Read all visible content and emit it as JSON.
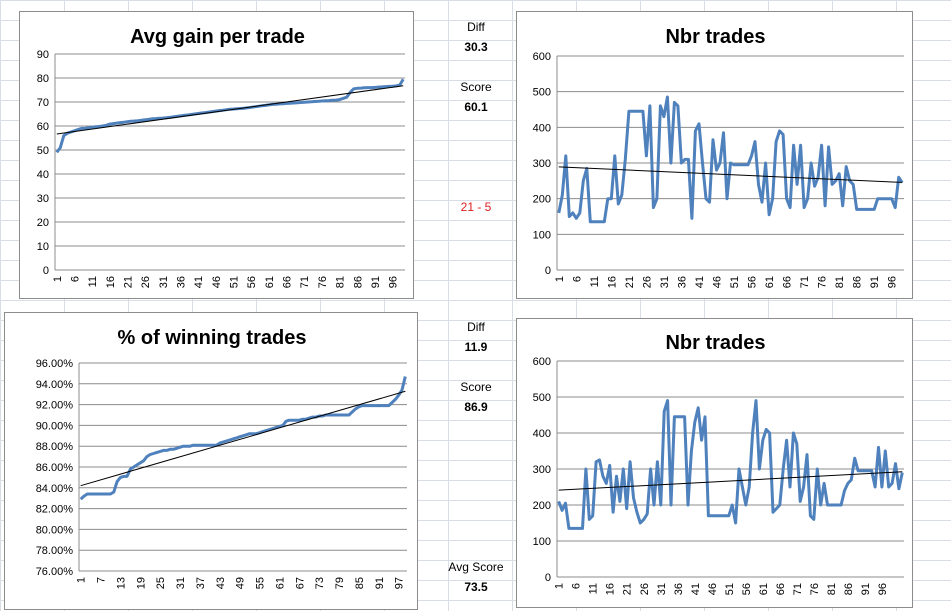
{
  "cells": {
    "diff1_label": "Diff",
    "diff1_value": "30.3",
    "score1_label": "Score",
    "score1_value": "60.1",
    "wl": "21 - 5",
    "diff2_label": "Diff",
    "diff2_value": "11.9",
    "score2_label": "Score",
    "score2_value": "86.9",
    "avg_label": "Avg Score",
    "avg_value": "73.5"
  },
  "colors": {
    "series": "#4f81bd",
    "trend": "#000000",
    "grid": "#8c8c8c"
  },
  "chart_data": [
    {
      "id": "c1",
      "type": "line",
      "title": "Avg gain per trade",
      "ylim": [
        0,
        90
      ],
      "yticks": [
        0,
        10,
        20,
        30,
        40,
        50,
        60,
        70,
        80,
        90
      ],
      "ytick_format": "int",
      "xtick_labels": [
        "1",
        "6",
        "11",
        "16",
        "21",
        "26",
        "31",
        "36",
        "41",
        "46",
        "51",
        "56",
        "61",
        "66",
        "71",
        "76",
        "81",
        "86",
        "91",
        "96"
      ],
      "trendline": true,
      "values": [
        49,
        51,
        56,
        57,
        57.5,
        58,
        58.5,
        59,
        59,
        59.3,
        59.5,
        59.7,
        59.8,
        60,
        60.3,
        60.8,
        61,
        61.2,
        61.4,
        61.6,
        61.8,
        62,
        62.1,
        62.2,
        62.4,
        62.6,
        62.8,
        63,
        63.1,
        63.2,
        63.3,
        63.4,
        63.6,
        63.8,
        64,
        64.2,
        64.4,
        64.6,
        64.8,
        65,
        65.2,
        65.4,
        65.6,
        65.8,
        66,
        66.2,
        66.4,
        66.6,
        66.8,
        67,
        67.1,
        67.2,
        67.3,
        67.4,
        67.6,
        67.8,
        68,
        68.2,
        68.4,
        68.6,
        68.8,
        69,
        69.1,
        69.2,
        69.3,
        69.4,
        69.5,
        69.6,
        69.7,
        69.8,
        69.9,
        70,
        70.1,
        70.2,
        70.3,
        70.4,
        70.5,
        70.6,
        70.7,
        70.8,
        71,
        71.5,
        72,
        74,
        75.5,
        75.7,
        75.8,
        75.9,
        76,
        76,
        76.1,
        76.2,
        76.3,
        76.4,
        76.5,
        76.6,
        76.7,
        77,
        79.5
      ]
    },
    {
      "id": "c2",
      "type": "line",
      "title": "Nbr trades",
      "ylim": [
        0,
        600
      ],
      "yticks": [
        0,
        100,
        200,
        300,
        400,
        500,
        600
      ],
      "ytick_format": "int",
      "xtick_labels": [
        "1",
        "6",
        "11",
        "16",
        "21",
        "26",
        "31",
        "36",
        "41",
        "46",
        "51",
        "56",
        "61",
        "66",
        "71",
        "76",
        "81",
        "86",
        "91",
        "96"
      ],
      "trendline": true,
      "values": [
        160,
        210,
        320,
        150,
        160,
        145,
        160,
        250,
        285,
        135,
        135,
        135,
        135,
        135,
        200,
        200,
        320,
        185,
        210,
        310,
        445,
        445,
        445,
        445,
        445,
        320,
        460,
        175,
        200,
        460,
        430,
        485,
        300,
        470,
        460,
        300,
        310,
        310,
        145,
        390,
        410,
        300,
        200,
        190,
        365,
        280,
        300,
        385,
        200,
        300,
        295,
        295,
        295,
        295,
        295,
        320,
        360,
        240,
        190,
        300,
        155,
        200,
        360,
        390,
        380,
        200,
        175,
        350,
        240,
        350,
        175,
        200,
        300,
        235,
        260,
        350,
        180,
        345,
        240,
        250,
        270,
        180,
        290,
        250,
        240,
        170,
        170,
        170,
        170,
        170,
        170,
        200,
        200,
        200,
        200,
        200,
        175,
        260,
        245
      ]
    },
    {
      "id": "c3",
      "type": "line",
      "title": "% of winning trades",
      "ylim": [
        0.76,
        0.96
      ],
      "yticks": [
        0.76,
        0.78,
        0.8,
        0.82,
        0.84,
        0.86,
        0.88,
        0.9,
        0.92,
        0.94,
        0.96
      ],
      "ytick_format": "pct",
      "xtick_labels": [
        "1",
        "7",
        "13",
        "19",
        "25",
        "31",
        "37",
        "43",
        "49",
        "55",
        "61",
        "67",
        "73",
        "79",
        "85",
        "91",
        "97"
      ],
      "trendline": true,
      "values": [
        0.829,
        0.832,
        0.834,
        0.834,
        0.834,
        0.834,
        0.834,
        0.834,
        0.834,
        0.834,
        0.836,
        0.846,
        0.85,
        0.851,
        0.851,
        0.858,
        0.86,
        0.862,
        0.864,
        0.866,
        0.87,
        0.872,
        0.873,
        0.874,
        0.875,
        0.876,
        0.876,
        0.877,
        0.877,
        0.878,
        0.879,
        0.88,
        0.88,
        0.88,
        0.881,
        0.881,
        0.881,
        0.881,
        0.881,
        0.881,
        0.881,
        0.881,
        0.883,
        0.884,
        0.885,
        0.886,
        0.887,
        0.888,
        0.889,
        0.89,
        0.891,
        0.892,
        0.892,
        0.892,
        0.893,
        0.894,
        0.895,
        0.896,
        0.897,
        0.898,
        0.899,
        0.9,
        0.904,
        0.905,
        0.905,
        0.905,
        0.905,
        0.906,
        0.906,
        0.907,
        0.908,
        0.908,
        0.909,
        0.909,
        0.91,
        0.91,
        0.91,
        0.91,
        0.91,
        0.91,
        0.91,
        0.91,
        0.913,
        0.916,
        0.918,
        0.919,
        0.919,
        0.919,
        0.919,
        0.919,
        0.919,
        0.919,
        0.919,
        0.919,
        0.922,
        0.925,
        0.929,
        0.934,
        0.947
      ]
    },
    {
      "id": "c4",
      "type": "line",
      "title": "Nbr trades",
      "ylim": [
        0,
        600
      ],
      "yticks": [
        0,
        100,
        200,
        300,
        400,
        500,
        600
      ],
      "ytick_format": "int",
      "xtick_labels": [
        "1",
        "6",
        "11",
        "16",
        "21",
        "26",
        "31",
        "36",
        "41",
        "46",
        "51",
        "56",
        "61",
        "66",
        "71",
        "76",
        "81",
        "86",
        "91",
        "96"
      ],
      "trendline": true,
      "values": [
        210,
        185,
        205,
        135,
        135,
        135,
        135,
        135,
        300,
        160,
        170,
        320,
        325,
        280,
        260,
        310,
        180,
        280,
        210,
        300,
        190,
        320,
        220,
        180,
        150,
        160,
        175,
        300,
        200,
        320,
        200,
        460,
        490,
        200,
        445,
        445,
        445,
        445,
        200,
        350,
        430,
        470,
        380,
        445,
        170,
        170,
        170,
        170,
        170,
        170,
        170,
        200,
        150,
        300,
        250,
        200,
        250,
        400,
        490,
        300,
        380,
        410,
        400,
        180,
        190,
        200,
        300,
        380,
        250,
        400,
        370,
        210,
        250,
        340,
        170,
        160,
        300,
        200,
        260,
        200,
        200,
        200,
        200,
        200,
        240,
        260,
        270,
        330,
        295,
        295,
        295,
        295,
        295,
        250,
        360,
        250,
        350,
        250,
        260,
        315,
        245,
        290
      ]
    }
  ]
}
